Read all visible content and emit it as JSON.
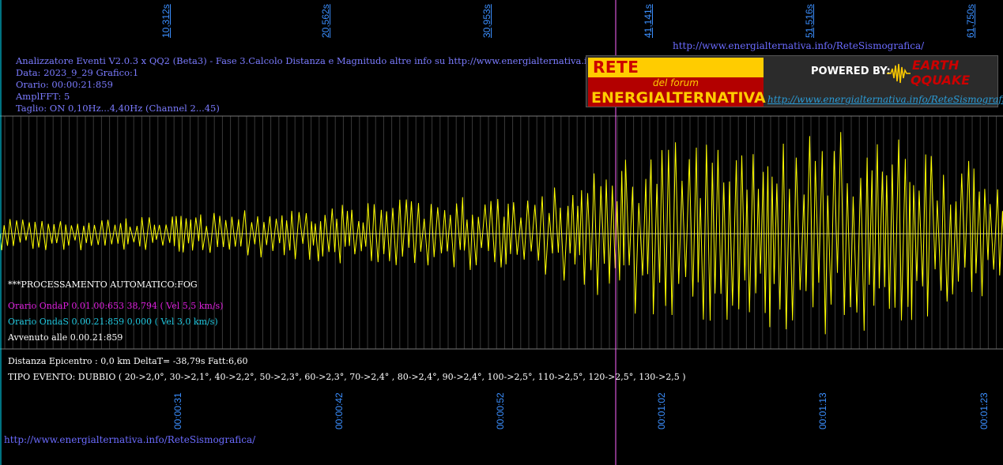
{
  "header": {
    "title": "Analizzatore Eventi V2.0.3 x QQ2 (Beta3) - Fase 3.Calcolo Distanza e Magnitudo altre info su http://www.energialternativa.info/ReteSism",
    "data_line": "Data: 2023_9_29 Grafico:1",
    "orario_line": "Orario: 00:00:21:859",
    "ampl_line": "AmplFFT: 5",
    "taglio_line": "Taglio: ON 0,10Hz...4,40Hz       (Channel 2...45)"
  },
  "top_time_labels": [
    "10,312s",
    "20,562s",
    "30,953s",
    "41,141s",
    "51,516s",
    "61,750s"
  ],
  "bottom_time_labels": [
    "00:00:31",
    "00:00:42",
    "00:00:52",
    "00:01:02",
    "00:01:13",
    "00:01:23"
  ],
  "top_url": "http://www.energialternativa.info/ReteSismografica/",
  "bottom_url": "http://www.energialternativa.info/ReteSismografica/",
  "logo": {
    "line1": "RETE SISMOGRAFICA",
    "line2": "del forum",
    "line3": "ENERGIALTERNATIVA",
    "powered": "POWERED BY:",
    "earth": "EARTH",
    "qquake": "QQUAKE",
    "url": "http://www.energialternativa.info/ReteSismografica"
  },
  "processing": {
    "status": "***PROCESSAMENTO AUTOMATICO:FOG",
    "onda_p": "Orario OndaP 0.01.00:653  38,794 ( Vel 5,5 km/s)",
    "onda_s": "Orario OndaS 0.00.21:859  0,000 ( Vel 3,0 km/s)",
    "avvenuto": "Avvenuto alle 0.00.21:859",
    "distanza": "Distanza Epicentro : 0,0 km DeltaT= -38,79s  Fatt:6,60",
    "tipo_evento": "TIPO EVENTO: DUBBIO ( 20->2,0°, 30->2,1°, 40->2,2°, 50->2,3°, 60->2,3°, 70->2,4° , 80->2,4°, 90->2,4°, 100->2,5°, 110->2,5°, 120->2,5°, 130->2,5 )"
  },
  "colors": {
    "background": "#000000",
    "trace": "#ffff00",
    "axis_label": "#3b8fff",
    "header_text": "#7b7bff",
    "onda_p": "#e020e0",
    "onda_s": "#20c8e0",
    "white_text": "#ffffff",
    "marker_line": "#ff66ff",
    "grid": "#444444"
  }
}
